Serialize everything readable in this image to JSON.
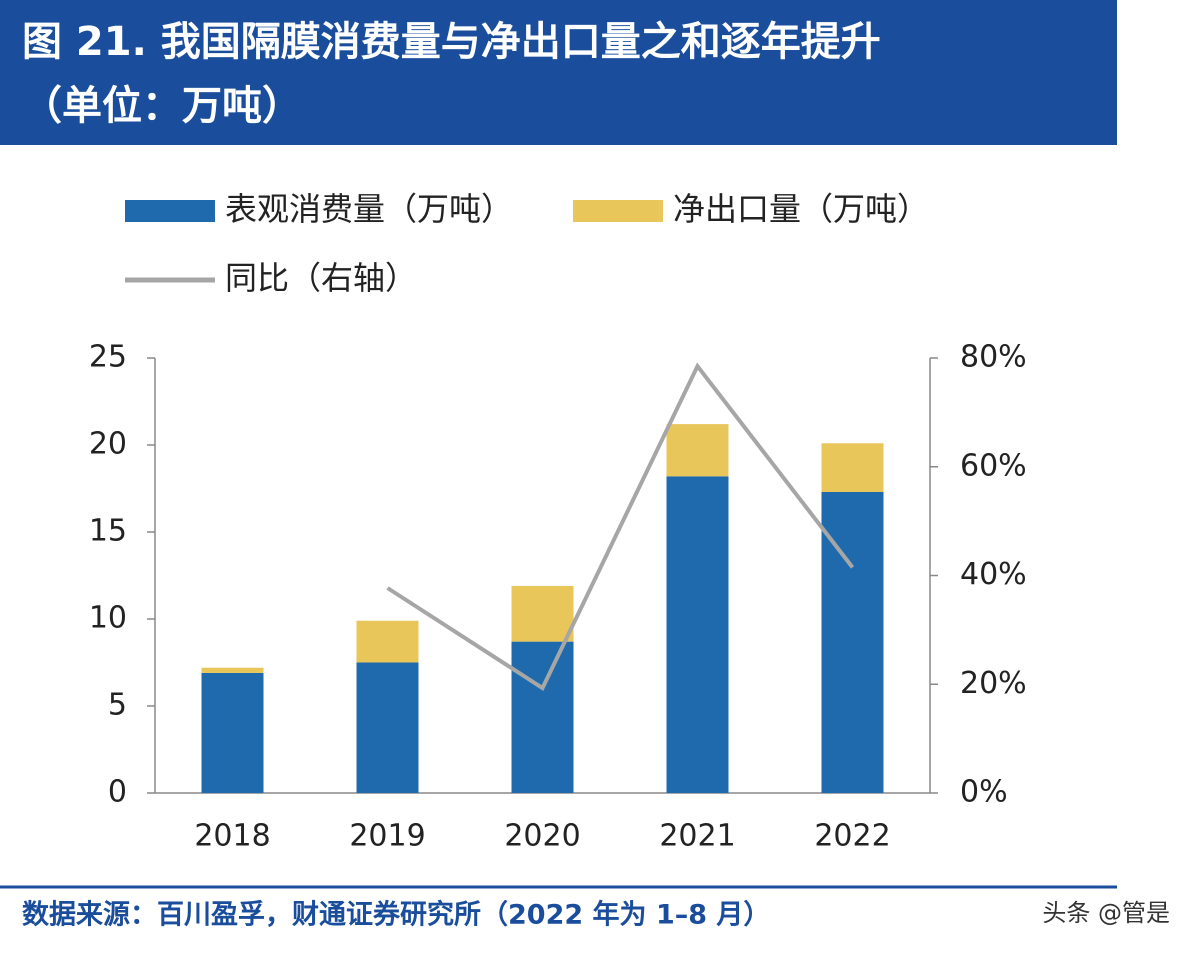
{
  "chart_data": {
    "type": "bar",
    "stacked": true,
    "title": "图 21. 我国隔膜消费量与净出口量之和逐年提升",
    "unit": "（单位：万吨）",
    "categories": [
      "2018",
      "2019",
      "2020",
      "2021",
      "2022"
    ],
    "series": [
      {
        "name": "表观消费量（万吨）",
        "color": "#1f6aad",
        "values": [
          6.9,
          7.5,
          8.7,
          18.2,
          17.3
        ]
      },
      {
        "name": "净出口量（万吨）",
        "color": "#e8c65a",
        "values": [
          0.3,
          2.4,
          3.2,
          3.0,
          2.8
        ]
      },
      {
        "name": "同比（右轴）",
        "type": "line",
        "axis": "y2",
        "color": "#a6a6a6",
        "values": [
          null,
          37.7,
          19.3,
          78.5,
          41.5
        ]
      }
    ],
    "ylim": [
      0,
      25
    ],
    "yticks": [
      0,
      5,
      10,
      15,
      20,
      25
    ],
    "y2lim": [
      0,
      80
    ],
    "y2ticks": [
      {
        "value": 0,
        "label": "0%"
      },
      {
        "value": 20,
        "label": "20%"
      },
      {
        "value": 40,
        "label": "40%"
      },
      {
        "value": 60,
        "label": "60%"
      },
      {
        "value": 80,
        "label": "80%"
      }
    ],
    "source": "数据来源：百川盈孚，财通证券研究所（2022 年为 1–8 月）",
    "watermark": "头条 @管是"
  }
}
